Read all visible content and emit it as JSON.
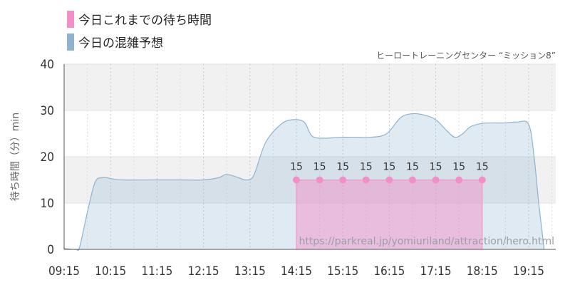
{
  "colors": {
    "actual": "#f28fc9",
    "forecast": "#8fb2d1"
  },
  "legend": [
    {
      "label": "今日これまでの待ち時間",
      "color": "#f28fc9"
    },
    {
      "label": "今日の混雑予想",
      "color": "#8fb2d1"
    }
  ],
  "subtitle": "ヒーロートレーニングセンター “ミッション8”",
  "watermark": "https://parkreal.jp/yomiuriland/attraction/hero.html",
  "chart_data": {
    "type": "area",
    "ylabel": "待ち時間（分）min",
    "ylim": [
      0,
      40
    ],
    "yticks": [
      0,
      10,
      20,
      30,
      40
    ],
    "xlim": [
      "09:15",
      "19:50"
    ],
    "xticks": [
      "09:15",
      "10:15",
      "11:15",
      "12:15",
      "13:15",
      "14:15",
      "15:15",
      "16:15",
      "17:15",
      "18:15",
      "19:15"
    ],
    "grid": true,
    "series": [
      {
        "name": "今日の混雑予想",
        "kind": "area",
        "points": [
          [
            "09:15",
            0.2
          ],
          [
            "09:30",
            0
          ],
          [
            "09:35",
            0.5
          ],
          [
            "09:45",
            8
          ],
          [
            "09:55",
            14.5
          ],
          [
            "10:05",
            15.5
          ],
          [
            "10:15",
            15.3
          ],
          [
            "10:30",
            15
          ],
          [
            "11:15",
            15
          ],
          [
            "11:45",
            15
          ],
          [
            "12:15",
            15
          ],
          [
            "12:35",
            15.5
          ],
          [
            "12:45",
            16.2
          ],
          [
            "13:00",
            15.5
          ],
          [
            "13:10",
            15
          ],
          [
            "13:20",
            16
          ],
          [
            "13:35",
            23
          ],
          [
            "13:55",
            27
          ],
          [
            "14:10",
            28
          ],
          [
            "14:25",
            27.5
          ],
          [
            "14:35",
            24.5
          ],
          [
            "14:50",
            24
          ],
          [
            "15:10",
            24.2
          ],
          [
            "15:30",
            24.2
          ],
          [
            "15:50",
            24.2
          ],
          [
            "16:05",
            24.5
          ],
          [
            "16:15",
            25.5
          ],
          [
            "16:30",
            28.5
          ],
          [
            "16:45",
            29.3
          ],
          [
            "17:00",
            29
          ],
          [
            "17:15",
            28
          ],
          [
            "17:30",
            25.5
          ],
          [
            "17:40",
            24.2
          ],
          [
            "17:50",
            25
          ],
          [
            "18:00",
            26.5
          ],
          [
            "18:15",
            27.2
          ],
          [
            "18:30",
            27.3
          ],
          [
            "18:45",
            27.3
          ],
          [
            "19:00",
            27.5
          ],
          [
            "19:15",
            27
          ],
          [
            "19:22",
            20
          ],
          [
            "19:28",
            10
          ],
          [
            "19:35",
            0
          ]
        ]
      },
      {
        "name": "今日これまでの待ち時間",
        "kind": "points",
        "points": [
          [
            "14:15",
            15
          ],
          [
            "14:45",
            15
          ],
          [
            "15:15",
            15
          ],
          [
            "15:45",
            15
          ],
          [
            "16:15",
            15
          ],
          [
            "16:45",
            15
          ],
          [
            "17:15",
            15
          ],
          [
            "17:45",
            15
          ],
          [
            "18:15",
            15
          ]
        ],
        "labels": [
          "15",
          "15",
          "15",
          "15",
          "15",
          "15",
          "15",
          "15",
          "15"
        ]
      }
    ]
  }
}
